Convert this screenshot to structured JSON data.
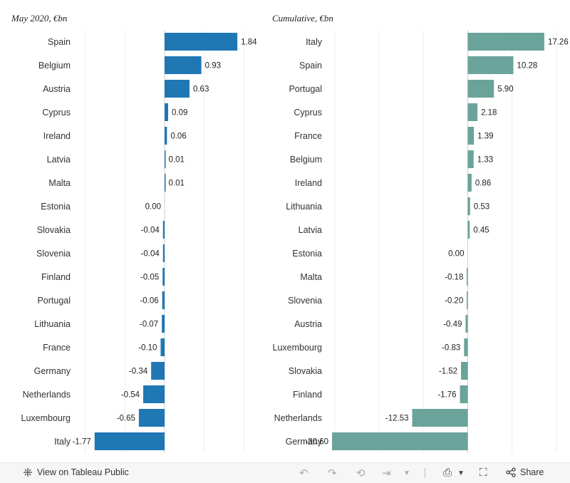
{
  "chart_data": [
    {
      "type": "bar",
      "orientation": "horizontal",
      "title": "May 2020, €bn",
      "categories": [
        "Spain",
        "Belgium",
        "Austria",
        "Cyprus",
        "Ireland",
        "Latvia",
        "Malta",
        "Estonia",
        "Slovakia",
        "Slovenia",
        "Finland",
        "Portugal",
        "Lithuania",
        "France",
        "Germany",
        "Netherlands",
        "Luxembourg",
        "Italy"
      ],
      "values": [
        1.84,
        0.93,
        0.63,
        0.09,
        0.06,
        0.01,
        0.01,
        0.0,
        -0.04,
        -0.04,
        -0.05,
        -0.06,
        -0.07,
        -0.1,
        -0.34,
        -0.54,
        -0.65,
        -1.77
      ],
      "labels": [
        "1.84",
        "0.93",
        "0.63",
        "0.09",
        "0.06",
        "0.01",
        "0.01",
        "0.00",
        "-0.04",
        "-0.04",
        "-0.05",
        "-0.06",
        "-0.07",
        "-0.10",
        "-0.34",
        "-0.54",
        "-0.65",
        "-1.77"
      ],
      "xlim": [
        -2.0,
        2.0
      ],
      "grid": true,
      "color": "#1f77b4"
    },
    {
      "type": "bar",
      "orientation": "horizontal",
      "title": "Cumulative, €bn",
      "categories": [
        "Italy",
        "Spain",
        "Portugal",
        "Cyprus",
        "France",
        "Belgium",
        "Ireland",
        "Lithuania",
        "Latvia",
        "Estonia",
        "Malta",
        "Slovenia",
        "Austria",
        "Luxembourg",
        "Slovakia",
        "Finland",
        "Netherlands",
        "Germany"
      ],
      "values": [
        17.26,
        10.28,
        5.9,
        2.18,
        1.39,
        1.33,
        0.86,
        0.53,
        0.45,
        0.0,
        -0.18,
        -0.2,
        -0.49,
        -0.83,
        -1.52,
        -1.76,
        -12.53,
        -30.6
      ],
      "labels": [
        "17.26",
        "10.28",
        "5.90",
        "2.18",
        "1.39",
        "1.33",
        "0.86",
        "0.53",
        "0.45",
        "0.00",
        "-0.18",
        "-0.20",
        "-0.49",
        "-0.83",
        "-1.52",
        "-1.76",
        "-12.53",
        "-30.60"
      ],
      "xlim": [
        -30.6,
        20.0
      ],
      "grid": true,
      "color": "#6aa39a"
    }
  ],
  "footer": {
    "view_label": "View on Tableau Public",
    "share_label": "Share",
    "icons": [
      "tableau-icon",
      "undo-icon",
      "redo-icon",
      "revert-icon",
      "pause-icon",
      "download-icon",
      "fullscreen-icon",
      "share-icon"
    ]
  }
}
